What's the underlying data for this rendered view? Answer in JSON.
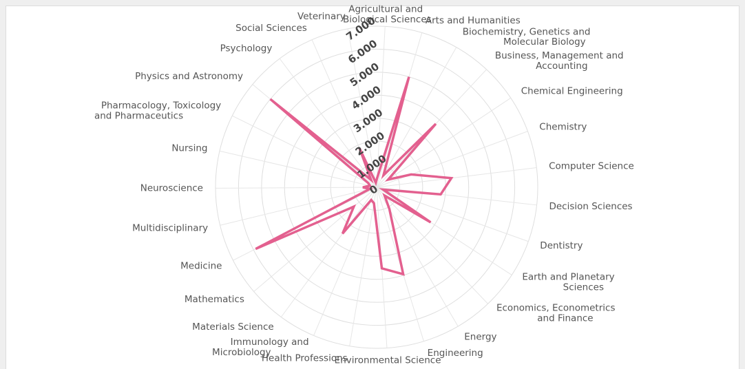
{
  "chart_data": {
    "type": "radar",
    "categories": [
      "Agricultural and Biological Sciences",
      "Arts and Humanities",
      "Biochemistry, Genetics and Molecular Biology",
      "Business, Management and Accounting",
      "Chemical Engineering",
      "Chemistry",
      "Computer Science",
      "Decision Sciences",
      "Dentistry",
      "Earth and Planetary Sciences",
      "Economics, Econometrics and Finance",
      "Energy",
      "Engineering",
      "Environmental Science",
      "Health Professions",
      "Immunology and Microbiology",
      "Materials Science",
      "Mathematics",
      "Medicine",
      "Multidisciplinary",
      "Neuroscience",
      "Nursing",
      "Pharmacology, Toxicology and Pharmaceutics",
      "Physics and Astronomy",
      "Psychology",
      "Social Sciences",
      "Veterinary"
    ],
    "series": [
      {
        "color": "#e3608f",
        "values": [
          400,
          5000,
          600,
          3770,
          600,
          1600,
          3270,
          2800,
          300,
          2800,
          500,
          1100,
          3950,
          3530,
          700,
          600,
          2500,
          1300,
          5900,
          300,
          600,
          300,
          400,
          6000,
          400,
          1850,
          200
        ]
      }
    ],
    "ylim": [
      0,
      7000
    ],
    "yticks": [
      0,
      {
        "value": 1000,
        "label": "1.000"
      },
      {
        "value": 2000,
        "label": "2.000"
      },
      {
        "value": 3000,
        "label": "3.000"
      },
      {
        "value": 4000,
        "label": "4.000"
      },
      {
        "value": 5000,
        "label": "5.000"
      },
      {
        "value": 6000,
        "label": "6.000"
      },
      {
        "value": 7000,
        "label": "7.000"
      }
    ],
    "grid": true
  }
}
